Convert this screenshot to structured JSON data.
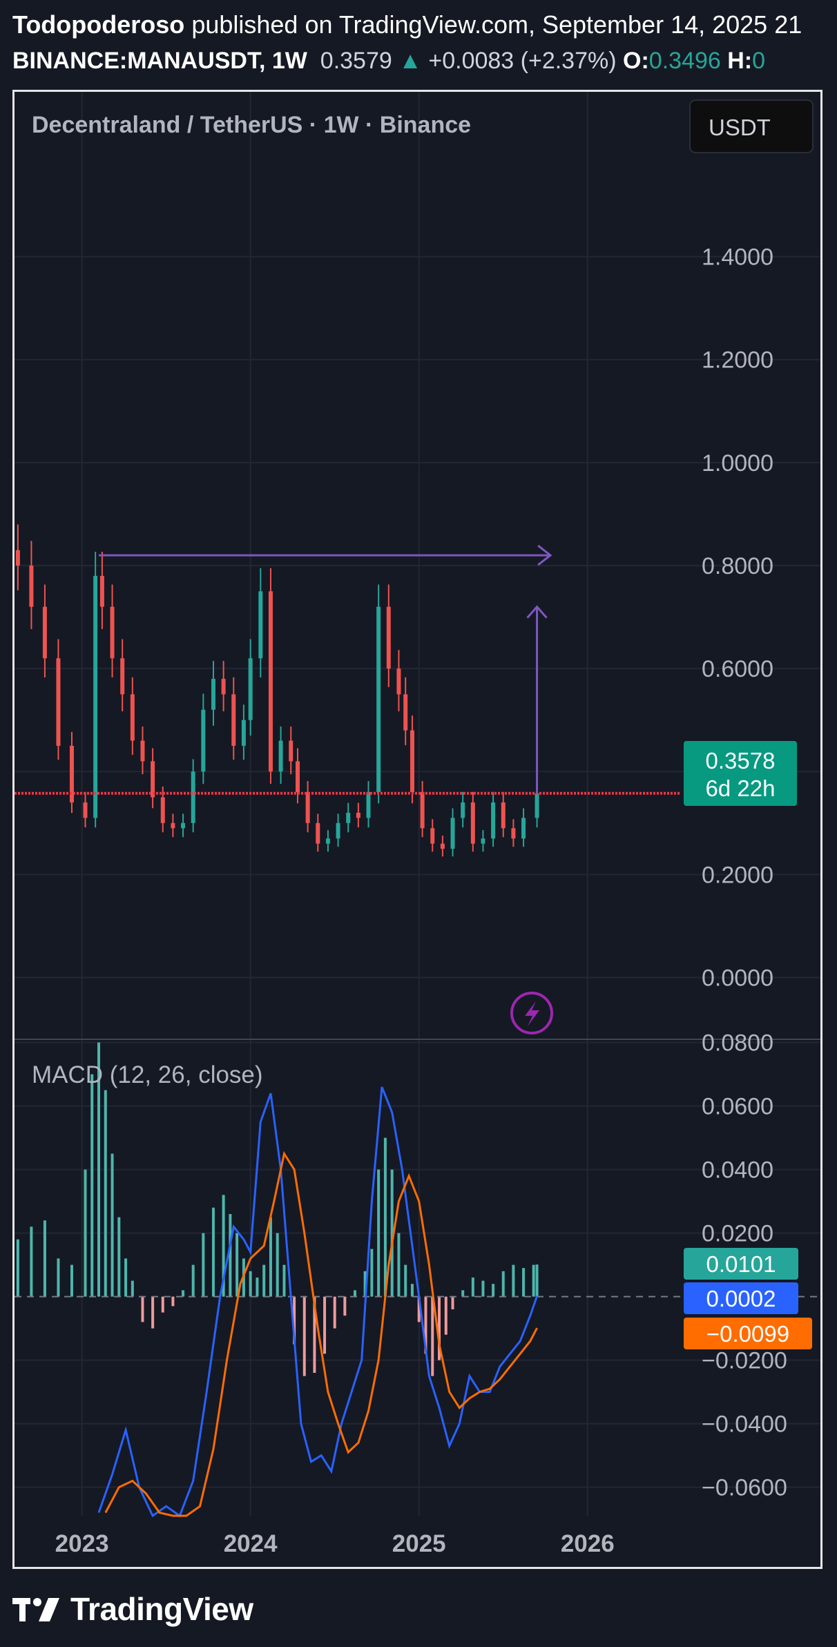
{
  "header": {
    "author": "Todopoderoso",
    "published_text": "published on TradingView.com, September 14, 2025 21",
    "symbol": "BINANCE:MANAUSDT, 1W",
    "price": "0.3579",
    "change": "+0.0083 (+2.37%)",
    "open_label": "O:",
    "open_value": "0.3496",
    "high_label": "H:",
    "high_value": "0"
  },
  "chart": {
    "pane_title": "Decentraland / TetherUS · 1W · Binance",
    "currency_button": "USDT",
    "price_badge": "0.3578",
    "countdown": "6d 22h",
    "macd_title": "MACD (12, 26, close)",
    "macd_badges": {
      "histogram": "0.0101",
      "macd": "0.0002",
      "signal": "−0.0099"
    }
  },
  "footer": {
    "brand": "TradingView"
  },
  "colors": {
    "background": "#151924",
    "up": "#26a69a",
    "down": "#ef5350",
    "macd_line": "#2962ff",
    "signal_line": "#ff6d00",
    "drawing": "#7e57c2",
    "price_line": "#f23645"
  },
  "chart_data": {
    "type": "line",
    "interval": "1W",
    "price_axis_ticks": [
      "1.4000",
      "1.2000",
      "1.0000",
      "0.8000",
      "0.6000",
      "0.4000",
      "0.2000",
      "0.0000"
    ],
    "price_range": [
      -0.12,
      1.72
    ],
    "time_axis_ticks": [
      "2023",
      "2024",
      "2025",
      "2026"
    ],
    "time_range": [
      2022.6,
      2026.55
    ],
    "current_price": 0.3578,
    "drawings": [
      {
        "type": "horizontal-ray",
        "from_x": 2023.1,
        "to_x": 2025.78,
        "y": 0.82
      },
      {
        "type": "arrow",
        "from": [
          2025.7,
          0.3578
        ],
        "to": [
          2025.7,
          0.72
        ]
      }
    ],
    "price_series": {
      "x": [
        2022.62,
        2022.7,
        2022.78,
        2022.86,
        2022.94,
        2023.02,
        2023.08,
        2023.12,
        2023.18,
        2023.24,
        2023.3,
        2023.36,
        2023.42,
        2023.48,
        2023.54,
        2023.6,
        2023.66,
        2023.72,
        2023.78,
        2023.84,
        2023.9,
        2023.96,
        2024.0,
        2024.06,
        2024.12,
        2024.18,
        2024.24,
        2024.28,
        2024.34,
        2024.4,
        2024.46,
        2024.52,
        2024.58,
        2024.64,
        2024.7,
        2024.76,
        2024.82,
        2024.88,
        2024.92,
        2024.96,
        2025.02,
        2025.08,
        2025.14,
        2025.2,
        2025.26,
        2025.32,
        2025.38,
        2025.44,
        2025.5,
        2025.56,
        2025.62,
        2025.7
      ],
      "close": [
        0.8,
        0.72,
        0.62,
        0.45,
        0.34,
        0.31,
        0.78,
        0.72,
        0.62,
        0.55,
        0.46,
        0.42,
        0.35,
        0.3,
        0.29,
        0.3,
        0.4,
        0.52,
        0.58,
        0.55,
        0.45,
        0.5,
        0.62,
        0.75,
        0.4,
        0.46,
        0.42,
        0.36,
        0.3,
        0.26,
        0.27,
        0.3,
        0.32,
        0.31,
        0.36,
        0.72,
        0.6,
        0.55,
        0.48,
        0.36,
        0.29,
        0.26,
        0.25,
        0.31,
        0.34,
        0.26,
        0.27,
        0.34,
        0.29,
        0.27,
        0.31,
        0.3579
      ]
    },
    "macd_axis_ticks": [
      "0.0800",
      "0.0600",
      "0.0400",
      "0.0200",
      "−0.0200",
      "−0.0400",
      "−0.0600"
    ],
    "macd_range": [
      -0.069,
      0.081
    ],
    "series": [
      {
        "name": "MACD",
        "x": [
          2023.1,
          2023.18,
          2023.26,
          2023.34,
          2023.42,
          2023.5,
          2023.58,
          2023.66,
          2023.74,
          2023.82,
          2023.9,
          2023.96,
          2024.0,
          2024.06,
          2024.12,
          2024.18,
          2024.24,
          2024.3,
          2024.36,
          2024.42,
          2024.48,
          2024.54,
          2024.6,
          2024.66,
          2024.72,
          2024.78,
          2024.84,
          2024.9,
          2024.95,
          2025.0,
          2025.06,
          2025.12,
          2025.18,
          2025.24,
          2025.3,
          2025.36,
          2025.42,
          2025.48,
          2025.54,
          2025.6,
          2025.66,
          2025.7
        ],
        "values": [
          -0.068,
          -0.056,
          -0.042,
          -0.06,
          -0.07,
          -0.066,
          -0.07,
          -0.058,
          -0.03,
          0.0,
          0.022,
          0.018,
          0.014,
          0.055,
          0.064,
          0.04,
          0.0,
          -0.04,
          -0.052,
          -0.05,
          -0.055,
          -0.04,
          -0.03,
          -0.02,
          0.03,
          0.066,
          0.058,
          0.04,
          0.02,
          0.0,
          -0.025,
          -0.035,
          -0.047,
          -0.04,
          -0.025,
          -0.03,
          -0.03,
          -0.022,
          -0.018,
          -0.014,
          -0.006,
          0.0002
        ]
      },
      {
        "name": "Signal",
        "x": [
          2023.14,
          2023.22,
          2023.3,
          2023.38,
          2023.46,
          2023.54,
          2023.62,
          2023.7,
          2023.78,
          2023.86,
          2023.94,
          2024.0,
          2024.08,
          2024.14,
          2024.2,
          2024.26,
          2024.32,
          2024.4,
          2024.46,
          2024.52,
          2024.58,
          2024.64,
          2024.7,
          2024.76,
          2024.82,
          2024.88,
          2024.94,
          2025.0,
          2025.06,
          2025.12,
          2025.18,
          2025.24,
          2025.3,
          2025.36,
          2025.42,
          2025.48,
          2025.54,
          2025.6,
          2025.66,
          2025.7
        ],
        "values": [
          -0.068,
          -0.06,
          -0.058,
          -0.062,
          -0.068,
          -0.07,
          -0.069,
          -0.066,
          -0.048,
          -0.02,
          0.004,
          0.012,
          0.016,
          0.03,
          0.045,
          0.04,
          0.02,
          -0.01,
          -0.03,
          -0.04,
          -0.049,
          -0.046,
          -0.036,
          -0.02,
          0.01,
          0.03,
          0.038,
          0.03,
          0.01,
          -0.015,
          -0.03,
          -0.035,
          -0.032,
          -0.03,
          -0.029,
          -0.026,
          -0.022,
          -0.018,
          -0.014,
          -0.0099
        ]
      }
    ],
    "macd_histogram": {
      "x": [
        2022.62,
        2022.7,
        2022.78,
        2022.86,
        2022.94,
        2023.02,
        2023.06,
        2023.1,
        2023.14,
        2023.18,
        2023.22,
        2023.26,
        2023.3,
        2023.36,
        2023.42,
        2023.48,
        2023.54,
        2023.6,
        2023.66,
        2023.72,
        2023.78,
        2023.84,
        2023.88,
        2023.92,
        2023.96,
        2024.0,
        2024.04,
        2024.08,
        2024.12,
        2024.16,
        2024.2,
        2024.26,
        2024.32,
        2024.38,
        2024.44,
        2024.5,
        2024.56,
        2024.62,
        2024.68,
        2024.72,
        2024.76,
        2024.8,
        2024.84,
        2024.88,
        2024.92,
        2024.96,
        2025.0,
        2025.04,
        2025.08,
        2025.12,
        2025.16,
        2025.2,
        2025.26,
        2025.32,
        2025.38,
        2025.44,
        2025.5,
        2025.56,
        2025.62,
        2025.68,
        2025.7
      ],
      "values": [
        0.018,
        0.022,
        0.024,
        0.012,
        0.01,
        0.04,
        0.07,
        0.08,
        0.065,
        0.045,
        0.025,
        0.012,
        0.005,
        -0.008,
        -0.01,
        -0.005,
        -0.003,
        0.002,
        0.01,
        0.02,
        0.028,
        0.032,
        0.026,
        0.02,
        0.012,
        0.008,
        0.006,
        0.01,
        0.025,
        0.02,
        0.01,
        -0.015,
        -0.025,
        -0.024,
        -0.018,
        -0.01,
        -0.006,
        0.002,
        0.008,
        0.015,
        0.04,
        0.05,
        0.04,
        0.02,
        0.01,
        0.004,
        -0.008,
        -0.018,
        -0.025,
        -0.02,
        -0.012,
        -0.004,
        0.002,
        0.006,
        0.005,
        0.004,
        0.008,
        0.01,
        0.009,
        0.01,
        0.0101
      ]
    }
  }
}
